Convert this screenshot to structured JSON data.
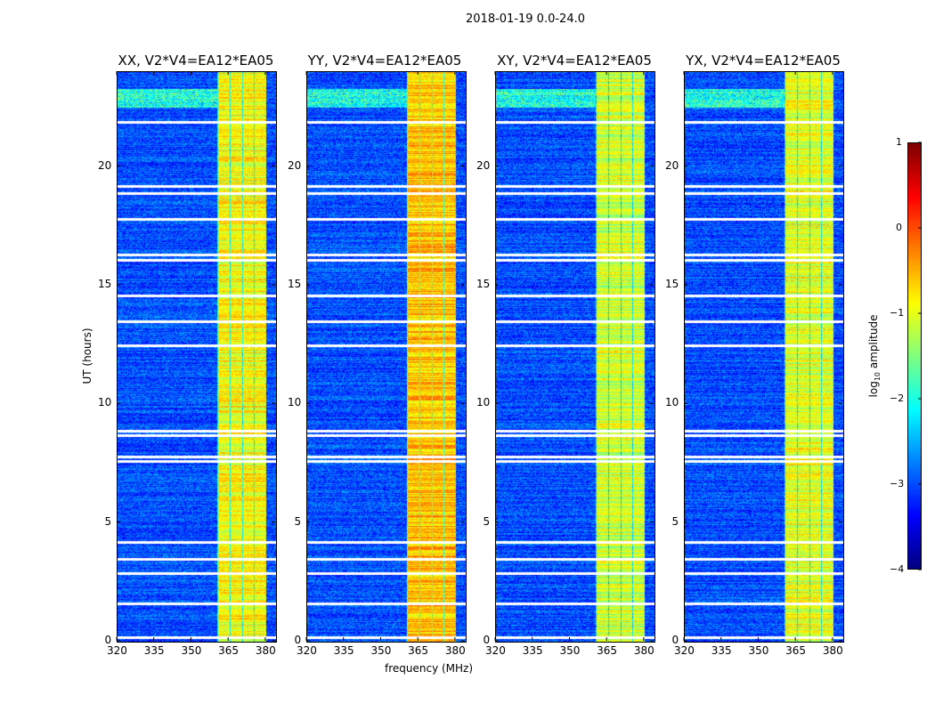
{
  "chart_data": {
    "type": "heatmap",
    "title": "2018-01-19 0.0-24.0",
    "xlabel": "frequency (MHz)",
    "ylabel": "UT (hours)",
    "xlim": [
      320,
      384
    ],
    "ylim": [
      0,
      24
    ],
    "xticks": [
      "320",
      "335",
      "350",
      "365",
      "380"
    ],
    "yticks": [
      "0",
      "5",
      "10",
      "15",
      "20"
    ],
    "panels": [
      {
        "title": "XX, V2*V4=EA12*EA05",
        "band_level": -0.9
      },
      {
        "title": "YY, V2*V4=EA12*EA05",
        "band_level": -0.6
      },
      {
        "title": "XY, V2*V4=EA12*EA05",
        "band_level": -1.1
      },
      {
        "title": "YX, V2*V4=EA12*EA05",
        "band_level": -1.0
      }
    ],
    "background_level": -3.0,
    "rfi_band_mhz": [
      360,
      380
    ],
    "flagged_hours": [
      0.2,
      1.6,
      2.9,
      3.5,
      4.2,
      7.6,
      7.8,
      8.7,
      8.9,
      12.5,
      13.5,
      14.6,
      16.1,
      16.3,
      17.8,
      18.9,
      19.2,
      21.9
    ],
    "colorbar": {
      "label": "log10 amplitude",
      "label_main": "log",
      "label_sub": "10",
      "label_rest": " amplitude",
      "range": [
        -4,
        1
      ],
      "ticks": [
        "1",
        "0",
        "−1",
        "−2",
        "−3",
        "−4"
      ],
      "colormap": "jet"
    }
  }
}
